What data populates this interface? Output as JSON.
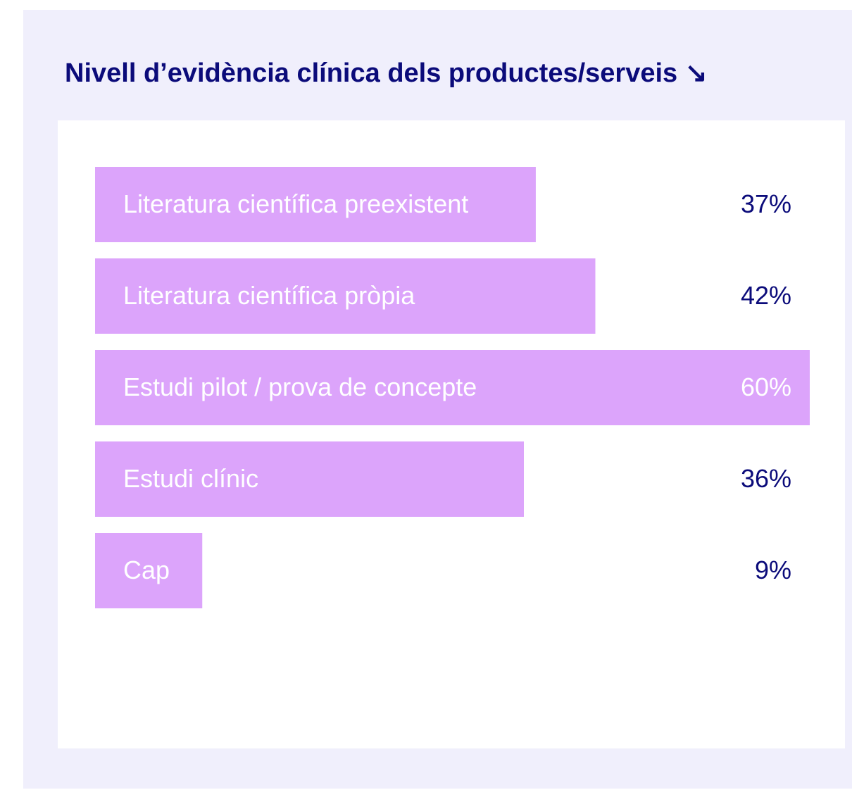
{
  "chart_data": {
    "type": "bar",
    "orientation": "horizontal",
    "title": "Nivell d’evidència clínica dels productes/serveis ↘",
    "categories": [
      "Literatura científica preexistent",
      "Literatura científica pròpia",
      "Estudi pilot / prova de concepte",
      "Estudi clínic",
      "Cap"
    ],
    "values": [
      37,
      42,
      60,
      36,
      9
    ],
    "value_labels": [
      "37%",
      "42%",
      "60%",
      "36%",
      "9%"
    ],
    "color": "#dca4fb"
  }
}
